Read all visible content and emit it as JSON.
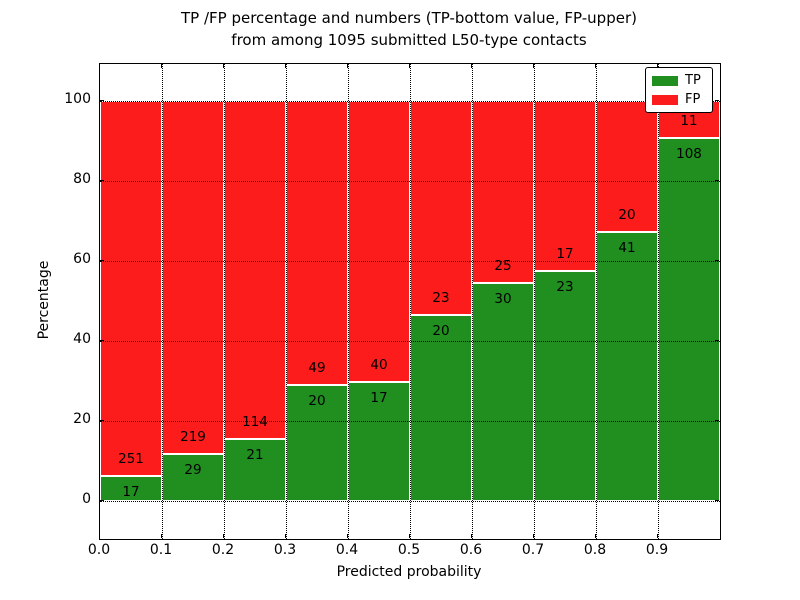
{
  "chart_data": {
    "type": "bar",
    "stacked": true,
    "normalized_to_percent": true,
    "title_line1": "TP /FP percentage and numbers (TP-bottom value, FP-upper)",
    "title_line2": "from among 1095 submitted L50-type contacts",
    "xlabel": "Predicted probability",
    "ylabel": "Percentage",
    "total_contacts": 1095,
    "categories": [
      "0.0-0.1",
      "0.1-0.2",
      "0.2-0.3",
      "0.3-0.4",
      "0.4-0.5",
      "0.5-0.6",
      "0.6-0.7",
      "0.7-0.8",
      "0.8-0.9",
      "0.9-1.0"
    ],
    "x_tick_labels": [
      "0.0",
      "0.1",
      "0.2",
      "0.3",
      "0.4",
      "0.5",
      "0.6",
      "0.7",
      "0.8",
      "0.9"
    ],
    "y_ticks": [
      0,
      20,
      40,
      60,
      80,
      100
    ],
    "xlim": [
      0.0,
      1.0
    ],
    "ylim": [
      -9.5,
      109.4
    ],
    "bin_width": 0.1,
    "series": [
      {
        "name": "TP",
        "color": "#208f20",
        "values": [
          17,
          29,
          21,
          20,
          17,
          20,
          30,
          23,
          41,
          108
        ]
      },
      {
        "name": "FP",
        "color": "#fc1c1c",
        "values": [
          251,
          219,
          114,
          49,
          40,
          23,
          25,
          17,
          20,
          11
        ]
      }
    ],
    "tp_percent": [
      6.34,
      11.69,
      15.56,
      28.99,
      29.82,
      46.51,
      54.55,
      57.5,
      67.21,
      90.76
    ],
    "grid": true,
    "grid_style": "dotted",
    "bar_edge_color": "#ffffff",
    "legend": {
      "position": "upper right",
      "entries": [
        {
          "label": "TP",
          "color": "#208f20"
        },
        {
          "label": "FP",
          "color": "#fc1c1c"
        }
      ]
    }
  }
}
